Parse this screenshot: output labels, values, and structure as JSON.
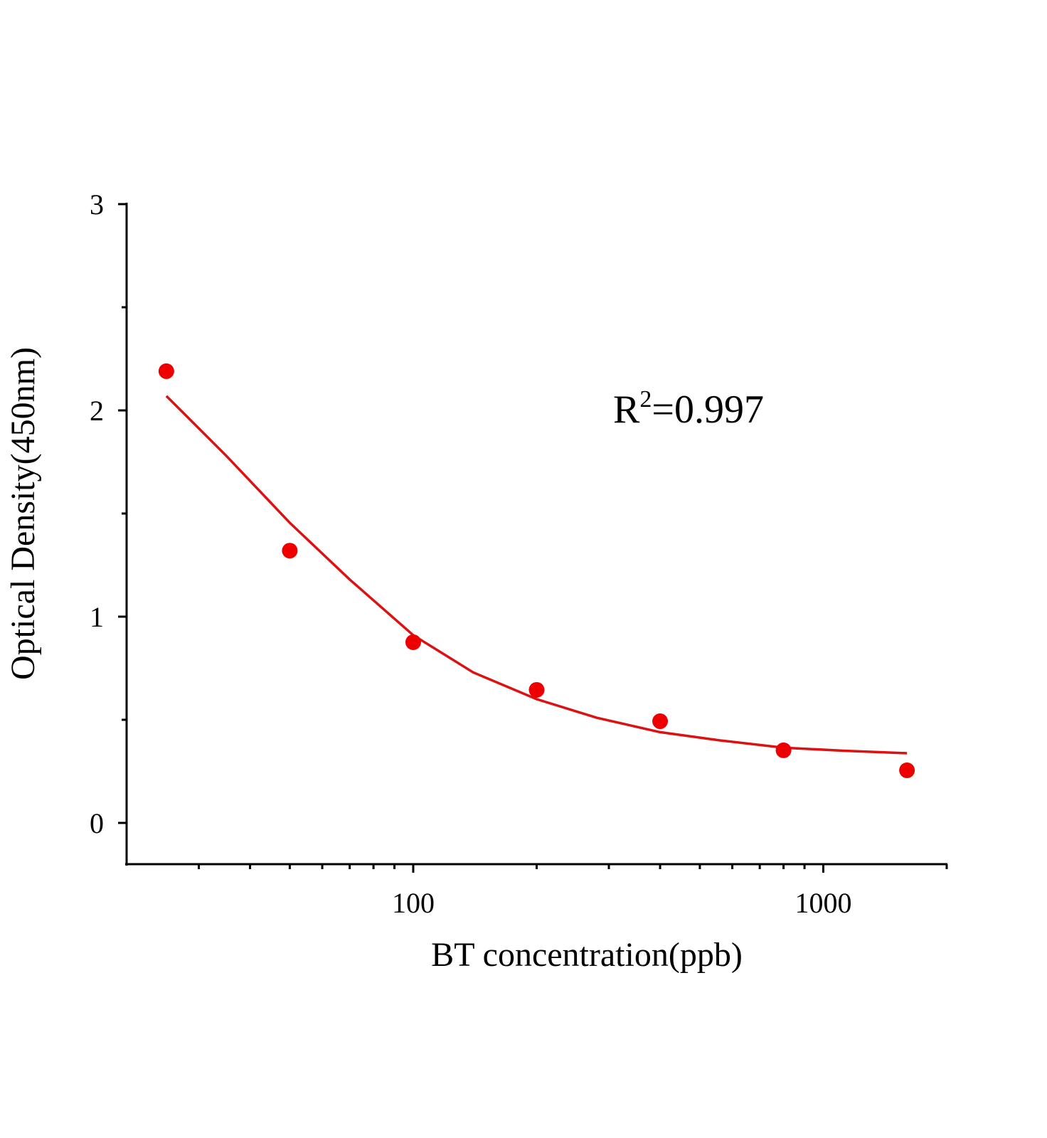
{
  "chart_data": {
    "type": "scatter",
    "x_label": "BT concentration(ppb)",
    "y_label": "Optical Density(450nm)",
    "annotation": {
      "base": "R",
      "superscript": "2",
      "text": "=0.997"
    },
    "xscale": "log",
    "xlim": [
      20,
      2000
    ],
    "ylim": [
      -0.2,
      3
    ],
    "xticks": [
      100,
      1000
    ],
    "xminorticks": [
      30,
      40,
      50,
      60,
      70,
      80,
      90,
      200,
      300,
      400,
      500,
      600,
      700,
      800,
      900,
      2000
    ],
    "yticks": [
      0,
      1,
      2,
      3
    ],
    "yminorticks": [
      0.5,
      1.5,
      2.5
    ],
    "series": [
      {
        "kind": "points",
        "color": "#ee0000",
        "x": [
          25,
          50,
          100,
          200,
          400,
          800,
          1600
        ],
        "values": [
          2.19,
          1.32,
          0.876,
          0.645,
          0.493,
          0.352,
          0.255
        ]
      },
      {
        "kind": "curve",
        "color": "#dd1111",
        "x": [
          25,
          35,
          50,
          70,
          100,
          140,
          200,
          280,
          400,
          560,
          800,
          1120,
          1600
        ],
        "values": [
          2.07,
          1.78,
          1.455,
          1.18,
          0.91,
          0.73,
          0.6,
          0.51,
          0.44,
          0.4,
          0.365,
          0.35,
          0.338
        ]
      }
    ]
  }
}
